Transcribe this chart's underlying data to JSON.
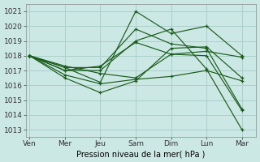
{
  "xlabel": "Pression niveau de la mer( hPa )",
  "background_color": "#cce8e5",
  "grid_color": "#a8d0cc",
  "line_color": "#1a5c1a",
  "ylim_min": 1012.5,
  "ylim_max": 1021.5,
  "xlim_min": -0.1,
  "xlim_max": 6.4,
  "xtick_labels": [
    "Ven",
    "Mer",
    "Jeu",
    "Sam",
    "Dim",
    "Lun",
    "Mar"
  ],
  "xtick_positions": [
    0,
    1,
    2,
    3,
    4,
    5,
    6
  ],
  "ytick_values": [
    1013,
    1014,
    1015,
    1016,
    1017,
    1018,
    1019,
    1020,
    1021
  ],
  "lines": [
    [
      1018.0,
      1016.7,
      1016.1,
      1016.4,
      1016.6,
      1017.0,
      1016.3
    ],
    [
      1018.0,
      1016.5,
      1015.5,
      1016.3,
      1018.5,
      1018.6,
      1016.5
    ],
    [
      1018.0,
      1017.0,
      1017.3,
      1018.9,
      1018.1,
      1018.3,
      1017.9
    ],
    [
      1018.0,
      1017.2,
      1016.2,
      1021.0,
      1019.5,
      1020.0,
      1018.0
    ],
    [
      1018.0,
      1017.0,
      1017.0,
      1019.0,
      1019.8,
      1017.1,
      1013.0
    ],
    [
      1018.0,
      1017.2,
      1017.2,
      1019.8,
      1018.8,
      1018.5,
      1014.4
    ],
    [
      1018.0,
      1017.3,
      1016.8,
      1016.5,
      1018.1,
      1018.0,
      1014.3
    ]
  ],
  "xlabel_fontsize": 7,
  "tick_fontsize": 6.5,
  "linewidth": 0.85,
  "markersize": 3.2,
  "markeredgewidth": 0.9,
  "figwidth": 3.2,
  "figheight": 2.0,
  "dpi": 100
}
